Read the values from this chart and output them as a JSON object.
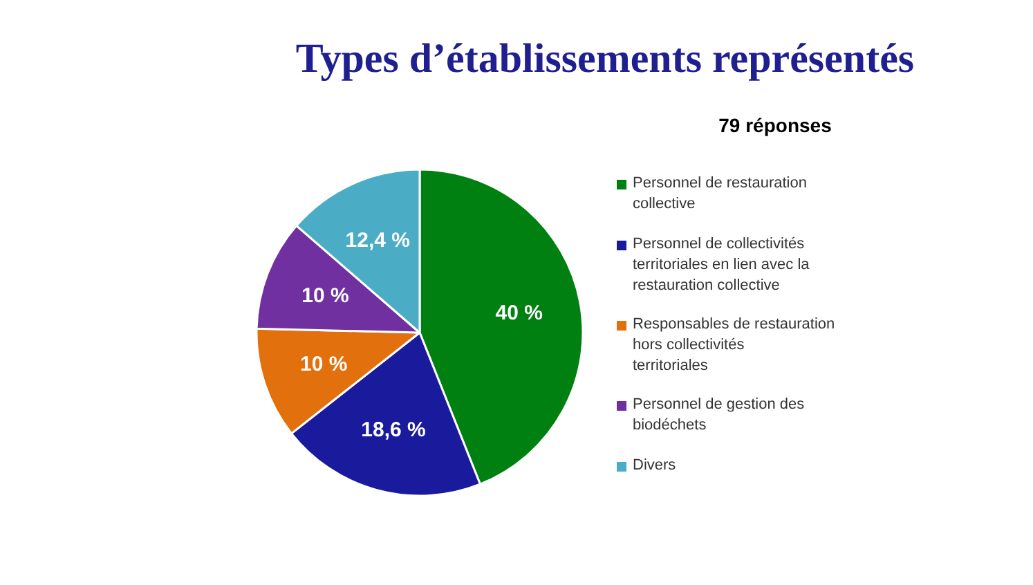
{
  "chart_data": {
    "type": "pie",
    "title": "Types d’établissements représentés",
    "subtitle": "79 réponses",
    "categories": [
      "Personnel de restauration collective",
      "Personnel de collectivités territoriales en lien avec la restauration collective",
      "Responsables de restauration hors collectivités territoriales",
      "Personnel de gestion des biodéchets",
      "Divers"
    ],
    "values": [
      40,
      18.6,
      10,
      10,
      12.4
    ],
    "value_labels": [
      "40 %",
      "18,6 %",
      "10 %",
      "10 %",
      "12,4 %"
    ],
    "colors": [
      "#008010",
      "#1a1a9c",
      "#e2700c",
      "#7030a0",
      "#4bacc6"
    ],
    "legend": "right"
  }
}
